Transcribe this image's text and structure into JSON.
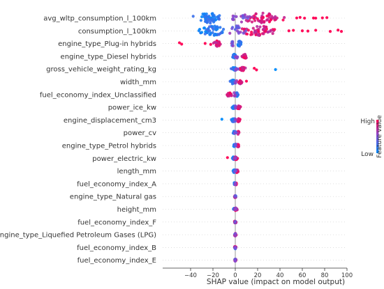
{
  "chart_data": {
    "type": "scatter",
    "subtype": "shap-beeswarm",
    "title": "",
    "xlabel": "SHAP value (impact on model output)",
    "ylabel": "",
    "xlim": [
      -45,
      100
    ],
    "x_ticks": [
      -40,
      -20,
      0,
      20,
      40,
      60,
      80,
      100
    ],
    "grid": false,
    "colorbar": {
      "title": "Feature value",
      "high_label": "High",
      "low_label": "Low",
      "low_color": "#008bfb",
      "mid_color": "#7c4fd8",
      "high_color": "#ff0052"
    },
    "features": [
      {
        "name": "avg_wltp_consumption_l_100km",
        "low_range": [
          -42,
          -5
        ],
        "high_range": [
          -2,
          52
        ],
        "outliers": [
          {
            "x": 55,
            "v": 1
          },
          {
            "x": 58,
            "v": 1
          },
          {
            "x": 62,
            "v": 1
          },
          {
            "x": 70,
            "v": 1
          },
          {
            "x": 78,
            "v": 1
          },
          {
            "x": 82,
            "v": 1
          },
          {
            "x": 72,
            "v": 1
          }
        ]
      },
      {
        "name": "consumption_l_100km",
        "low_range": [
          -35,
          -5
        ],
        "high_range": [
          -2,
          45
        ],
        "outliers": [
          {
            "x": 48,
            "v": 1
          },
          {
            "x": 52,
            "v": 1
          },
          {
            "x": 60,
            "v": 1
          },
          {
            "x": 65,
            "v": 1
          },
          {
            "x": 72,
            "v": 1
          },
          {
            "x": 85,
            "v": 1
          },
          {
            "x": 92,
            "v": 1
          },
          {
            "x": 95,
            "v": 1
          }
        ]
      },
      {
        "name": "engine_type_Plug-in hybrids",
        "low_range": [
          1,
          6
        ],
        "high_range": [
          -20,
          -12
        ],
        "outliers": [
          {
            "x": -50,
            "v": 1
          },
          {
            "x": -48,
            "v": 1
          },
          {
            "x": -22,
            "v": 1
          },
          {
            "x": -27,
            "v": 1
          }
        ]
      },
      {
        "name": "engine_type_Diesel hybrids",
        "low_range": [
          -3,
          1
        ],
        "high_range": [
          5,
          12
        ],
        "outliers": []
      },
      {
        "name": "gross_vehicle_weight_rating_kg",
        "low_range": [
          -5,
          2
        ],
        "high_range": [
          3,
          10
        ],
        "outliers": [
          {
            "x": 17,
            "v": 1
          },
          {
            "x": 19,
            "v": 1
          },
          {
            "x": 36,
            "v": 0
          }
        ]
      },
      {
        "name": "width_mm",
        "low_range": [
          -6,
          1
        ],
        "high_range": [
          2,
          7
        ],
        "outliers": [
          {
            "x": 10,
            "v": 1
          }
        ]
      },
      {
        "name": "fuel_economy_index_Unclassified",
        "low_range": [
          0,
          3
        ],
        "high_range": [
          -9,
          -2
        ],
        "outliers": []
      },
      {
        "name": "power_ice_kw",
        "low_range": [
          -4,
          1
        ],
        "high_range": [
          1,
          5
        ],
        "outliers": []
      },
      {
        "name": "engine_displacement_cm3",
        "low_range": [
          -5,
          1
        ],
        "high_range": [
          1,
          5
        ],
        "outliers": [
          {
            "x": -12,
            "v": 0
          }
        ]
      },
      {
        "name": "power_cv",
        "low_range": [
          -3,
          1
        ],
        "high_range": [
          1,
          4
        ],
        "outliers": []
      },
      {
        "name": "engine_type_Petrol hybrids",
        "low_range": [
          -2,
          1
        ],
        "high_range": [
          1,
          4
        ],
        "outliers": []
      },
      {
        "name": "power_electric_kw",
        "low_range": [
          -4,
          1
        ],
        "high_range": [
          -2,
          3
        ],
        "outliers": [
          {
            "x": -7,
            "v": 1
          }
        ]
      },
      {
        "name": "length_mm",
        "low_range": [
          -3,
          1
        ],
        "high_range": [
          0,
          3
        ],
        "outliers": []
      },
      {
        "name": "fuel_economy_index_A",
        "low_range": [
          -2,
          1
        ],
        "high_range": [
          -1,
          2
        ],
        "outliers": []
      },
      {
        "name": "engine_type_Natural gas",
        "low_range": [
          -1,
          1
        ],
        "high_range": [
          -1,
          1
        ],
        "outliers": []
      },
      {
        "name": "height_mm",
        "low_range": [
          -2,
          1
        ],
        "high_range": [
          -1,
          2
        ],
        "outliers": []
      },
      {
        "name": "fuel_economy_index_F",
        "low_range": [
          -1,
          1
        ],
        "high_range": [
          -1,
          1
        ],
        "outliers": []
      },
      {
        "name": "engine_type_Liquefied Petroleum Gases (LPG)",
        "low_range": [
          -1,
          1
        ],
        "high_range": [
          -1,
          1
        ],
        "outliers": []
      },
      {
        "name": "fuel_economy_index_B",
        "low_range": [
          -1,
          1
        ],
        "high_range": [
          -1,
          1
        ],
        "outliers": []
      },
      {
        "name": "fuel_economy_index_E",
        "low_range": [
          -1,
          1
        ],
        "high_range": [
          -1,
          1
        ],
        "outliers": []
      }
    ]
  }
}
